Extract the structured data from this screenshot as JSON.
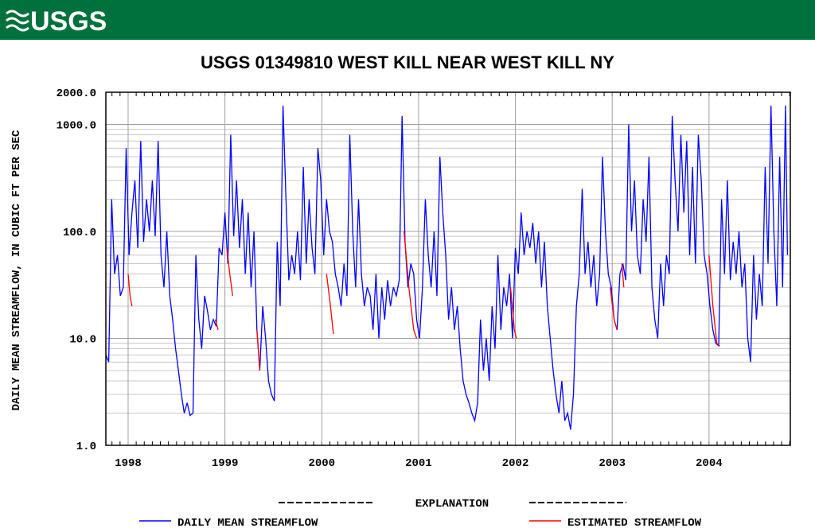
{
  "header": {
    "logo": "USGS"
  },
  "chart_data": {
    "type": "line",
    "title": "USGS 01349810 WEST KILL NEAR WEST KILL NY",
    "y_label": "DAILY MEAN STREAMFLOW, IN CUBIC FT PER SEC",
    "legend_title": "EXPLANATION",
    "log_y": true,
    "grid": true,
    "xlim": [
      1997.77,
      2004.84
    ],
    "xticks": [
      1998,
      1999,
      2000,
      2001,
      2002,
      2003,
      2004
    ],
    "ylim": [
      1,
      2000
    ],
    "yticks": [
      {
        "value": 1,
        "label": "1.0"
      },
      {
        "value": 10,
        "label": "10.0"
      },
      {
        "value": 100,
        "label": "100.0"
      },
      {
        "value": 1000,
        "label": "1000.0"
      },
      {
        "value": 2000,
        "label": "2000.0"
      }
    ],
    "series": [
      {
        "name": "DAILY MEAN STREAMFLOW",
        "color": "#0000ff",
        "x": [
          1997.77,
          1997.8,
          1997.83,
          1997.86,
          1997.89,
          1997.92,
          1997.95,
          1997.98,
          1998.01,
          1998.04,
          1998.07,
          1998.1,
          1998.13,
          1998.16,
          1998.19,
          1998.22,
          1998.25,
          1998.28,
          1998.31,
          1998.34,
          1998.37,
          1998.4,
          1998.43,
          1998.46,
          1998.49,
          1998.52,
          1998.55,
          1998.58,
          1998.61,
          1998.64,
          1998.67,
          1998.7,
          1998.73,
          1998.76,
          1998.79,
          1998.82,
          1998.85,
          1998.88,
          1998.91,
          1998.94,
          1998.97,
          1999.0,
          1999.03,
          1999.06,
          1999.09,
          1999.12,
          1999.15,
          1999.18,
          1999.21,
          1999.24,
          1999.27,
          1999.3,
          1999.33,
          1999.36,
          1999.39,
          1999.42,
          1999.45,
          1999.48,
          1999.51,
          1999.54,
          1999.57,
          1999.6,
          1999.63,
          1999.66,
          1999.69,
          1999.72,
          1999.75,
          1999.78,
          1999.81,
          1999.84,
          1999.87,
          1999.9,
          1999.93,
          1999.96,
          1999.99,
          2000.02,
          2000.05,
          2000.08,
          2000.11,
          2000.14,
          2000.17,
          2000.2,
          2000.23,
          2000.26,
          2000.29,
          2000.32,
          2000.35,
          2000.38,
          2000.41,
          2000.44,
          2000.47,
          2000.5,
          2000.53,
          2000.56,
          2000.59,
          2000.62,
          2000.65,
          2000.68,
          2000.71,
          2000.74,
          2000.77,
          2000.8,
          2000.83,
          2000.86,
          2000.89,
          2000.92,
          2000.95,
          2000.98,
          2001.01,
          2001.04,
          2001.07,
          2001.1,
          2001.13,
          2001.16,
          2001.19,
          2001.22,
          2001.25,
          2001.28,
          2001.31,
          2001.34,
          2001.37,
          2001.4,
          2001.43,
          2001.46,
          2001.49,
          2001.52,
          2001.55,
          2001.58,
          2001.61,
          2001.64,
          2001.67,
          2001.7,
          2001.73,
          2001.76,
          2001.79,
          2001.82,
          2001.85,
          2001.88,
          2001.91,
          2001.94,
          2001.97,
          2002.0,
          2002.03,
          2002.06,
          2002.09,
          2002.12,
          2002.15,
          2002.18,
          2002.21,
          2002.24,
          2002.27,
          2002.3,
          2002.33,
          2002.36,
          2002.39,
          2002.42,
          2002.45,
          2002.48,
          2002.51,
          2002.54,
          2002.57,
          2002.6,
          2002.63,
          2002.66,
          2002.69,
          2002.72,
          2002.75,
          2002.78,
          2002.81,
          2002.84,
          2002.87,
          2002.9,
          2002.93,
          2002.96,
          2002.99,
          2003.02,
          2003.05,
          2003.08,
          2003.11,
          2003.14,
          2003.17,
          2003.2,
          2003.23,
          2003.26,
          2003.29,
          2003.32,
          2003.35,
          2003.38,
          2003.41,
          2003.44,
          2003.47,
          2003.5,
          2003.53,
          2003.56,
          2003.59,
          2003.62,
          2003.65,
          2003.68,
          2003.71,
          2003.74,
          2003.77,
          2003.8,
          2003.83,
          2003.86,
          2003.89,
          2003.92,
          2003.95,
          2003.98,
          2004.01,
          2004.04,
          2004.07,
          2004.1,
          2004.13,
          2004.16,
          2004.19,
          2004.22,
          2004.25,
          2004.28,
          2004.31,
          2004.34,
          2004.37,
          2004.4,
          2004.43,
          2004.46,
          2004.49,
          2004.52,
          2004.55,
          2004.58,
          2004.61,
          2004.64,
          2004.67,
          2004.7,
          2004.73,
          2004.76,
          2004.79,
          2004.81
        ],
        "values": [
          7,
          6,
          200,
          40,
          60,
          25,
          30,
          600,
          60,
          150,
          300,
          70,
          700,
          80,
          200,
          100,
          300,
          90,
          700,
          60,
          30,
          100,
          25,
          15,
          8,
          5,
          3,
          2,
          2.5,
          1.9,
          2,
          60,
          15,
          8,
          25,
          18,
          12,
          15,
          13,
          70,
          60,
          150,
          50,
          800,
          90,
          300,
          70,
          200,
          40,
          150,
          30,
          100,
          12,
          5,
          20,
          10,
          4,
          3,
          2.6,
          80,
          20,
          1500,
          200,
          35,
          60,
          40,
          100,
          35,
          400,
          50,
          200,
          70,
          40,
          600,
          300,
          60,
          200,
          100,
          80,
          40,
          30,
          20,
          50,
          25,
          800,
          100,
          30,
          200,
          40,
          20,
          30,
          25,
          12,
          40,
          10,
          30,
          15,
          35,
          20,
          30,
          25,
          35,
          1200,
          80,
          30,
          50,
          40,
          15,
          10,
          30,
          200,
          60,
          30,
          100,
          25,
          500,
          150,
          60,
          15,
          30,
          12,
          20,
          8,
          4,
          3,
          2.5,
          2,
          1.7,
          2.5,
          15,
          5,
          10,
          4,
          20,
          8,
          60,
          12,
          30,
          20,
          40,
          10,
          70,
          40,
          150,
          60,
          100,
          70,
          120,
          50,
          100,
          30,
          80,
          20,
          10,
          5,
          3,
          2,
          4,
          1.7,
          2,
          1.4,
          3,
          20,
          40,
          250,
          40,
          80,
          30,
          60,
          20,
          40,
          500,
          100,
          40,
          30,
          15,
          12,
          40,
          50,
          35,
          1000,
          100,
          300,
          60,
          40,
          200,
          80,
          500,
          30,
          15,
          10,
          50,
          20,
          60,
          40,
          1200,
          300,
          100,
          800,
          150,
          700,
          60,
          400,
          50,
          800,
          300,
          60,
          40,
          20,
          12,
          9,
          8.5,
          200,
          40,
          300,
          35,
          80,
          40,
          100,
          30,
          50,
          10,
          6,
          60,
          15,
          40,
          20,
          400,
          50,
          1500,
          100,
          20,
          500,
          30,
          1500,
          60
        ]
      },
      {
        "name": "ESTIMATED STREAMFLOW",
        "color": "#ff0000",
        "x": [
          1998.0,
          1998.02,
          1998.04,
          null,
          1998.9,
          1998.93,
          null,
          1999.02,
          1999.05,
          1999.08,
          null,
          1999.33,
          1999.36,
          null,
          2000.05,
          2000.09,
          2000.12,
          null,
          2000.85,
          2000.9,
          2000.95,
          2000.98,
          null,
          2001.95,
          2001.99,
          2002.01,
          null,
          2002.98,
          2003.02,
          2003.05,
          null,
          2003.1,
          2003.12,
          null,
          2004.0,
          2004.04,
          2004.08,
          2004.11
        ],
        "values": [
          40,
          25,
          20,
          null,
          15,
          12,
          null,
          70,
          40,
          25,
          null,
          12,
          5,
          null,
          40,
          20,
          11,
          null,
          100,
          30,
          12,
          10,
          null,
          30,
          12,
          10,
          null,
          30,
          15,
          12,
          null,
          50,
          30,
          null,
          60,
          20,
          9,
          8.5
        ]
      }
    ]
  }
}
